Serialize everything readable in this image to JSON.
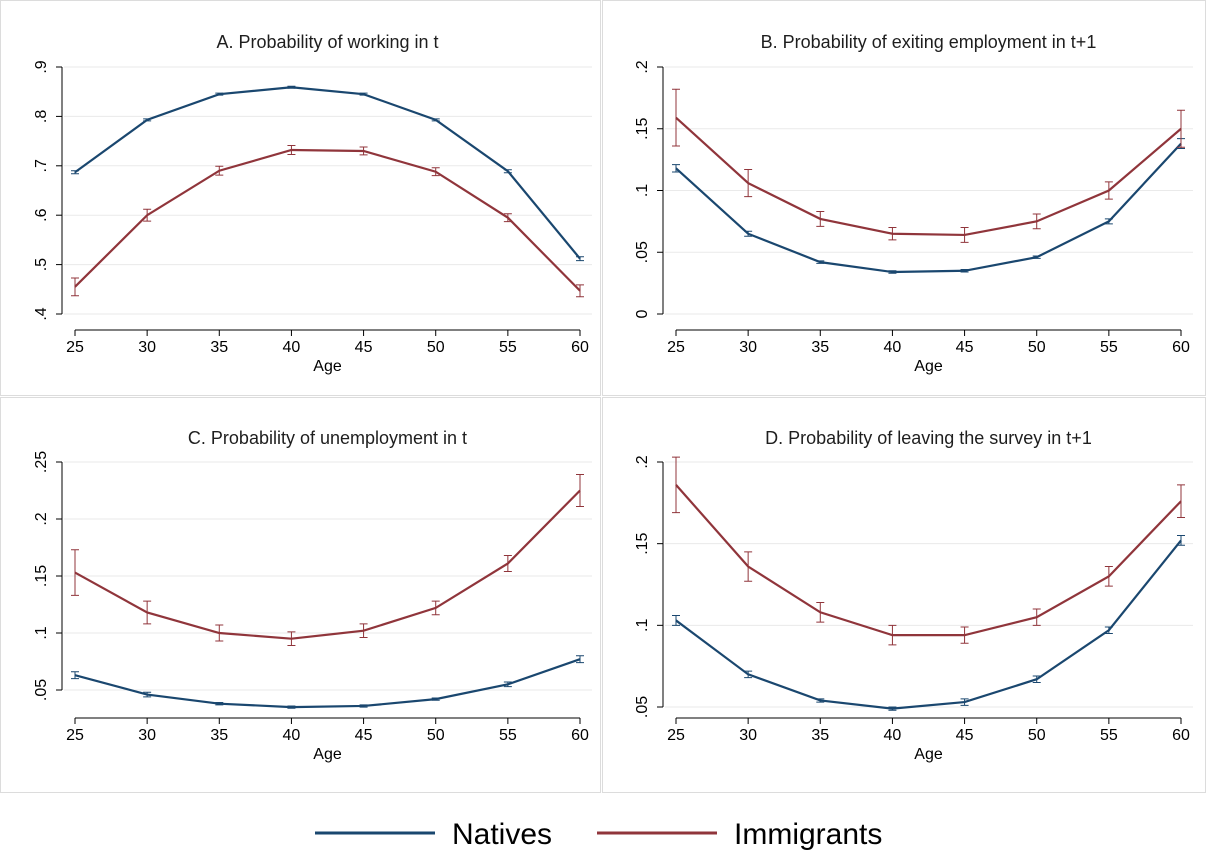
{
  "chart_data": [
    {
      "type": "line",
      "title": "A. Probability of working in t",
      "x_label": "Age",
      "x": [
        25,
        30,
        35,
        40,
        45,
        50,
        55,
        60
      ],
      "xlim": [
        25,
        60
      ],
      "xticks": [
        25,
        30,
        35,
        40,
        45,
        50,
        55,
        60
      ],
      "ylim": [
        0.4,
        0.9
      ],
      "yticks": [
        {
          "value": 0.4,
          "label": ".4"
        },
        {
          "value": 0.5,
          "label": ".5"
        },
        {
          "value": 0.6,
          "label": ".6"
        },
        {
          "value": 0.7,
          "label": ".7"
        },
        {
          "value": 0.8,
          "label": ".8"
        },
        {
          "value": 0.9,
          "label": ".9"
        }
      ],
      "grid": true,
      "series": [
        {
          "name": "Natives",
          "color": "#1a476f",
          "values": [
            0.687,
            0.793,
            0.845,
            0.859,
            0.845,
            0.793,
            0.689,
            0.512
          ],
          "errors": [
            0.003,
            0.002,
            0.002,
            0.002,
            0.002,
            0.002,
            0.003,
            0.004
          ]
        },
        {
          "name": "Immigrants",
          "color": "#90353b",
          "values": [
            0.455,
            0.6,
            0.69,
            0.732,
            0.73,
            0.688,
            0.595,
            0.447
          ],
          "errors": [
            0.018,
            0.012,
            0.009,
            0.009,
            0.008,
            0.008,
            0.008,
            0.012
          ]
        }
      ]
    },
    {
      "type": "line",
      "title": "B. Probability of exiting employment in t+1",
      "x_label": "Age",
      "x": [
        25,
        30,
        35,
        40,
        45,
        50,
        55,
        60
      ],
      "xlim": [
        25,
        60
      ],
      "xticks": [
        25,
        30,
        35,
        40,
        45,
        50,
        55,
        60
      ],
      "ylim": [
        0,
        0.2
      ],
      "yticks": [
        0,
        {
          "value": 0.05,
          "label": ".05"
        },
        {
          "value": 0.1,
          "label": ".1"
        },
        {
          "value": 0.15,
          "label": ".15"
        },
        {
          "value": 0.2,
          "label": ".2"
        }
      ],
      "grid": true,
      "series": [
        {
          "name": "Natives",
          "color": "#1a476f",
          "values": [
            0.118,
            0.065,
            0.042,
            0.034,
            0.035,
            0.046,
            0.075,
            0.138
          ],
          "errors": [
            0.003,
            0.002,
            0.001,
            0.001,
            0.001,
            0.001,
            0.002,
            0.004
          ]
        },
        {
          "name": "Immigrants",
          "color": "#90353b",
          "values": [
            0.159,
            0.106,
            0.077,
            0.065,
            0.064,
            0.075,
            0.1,
            0.15
          ],
          "errors": [
            0.023,
            0.011,
            0.006,
            0.005,
            0.006,
            0.006,
            0.007,
            0.015
          ]
        }
      ]
    },
    {
      "type": "line",
      "title": "C. Probability of unemployment in t",
      "x_label": "Age",
      "x": [
        25,
        30,
        35,
        40,
        45,
        50,
        55,
        60
      ],
      "xlim": [
        25,
        60
      ],
      "xticks": [
        25,
        30,
        35,
        40,
        45,
        50,
        55,
        60
      ],
      "ylim": [
        0.05,
        0.25
      ],
      "yticks": [
        {
          "value": 0.05,
          "label": ".05"
        },
        {
          "value": 0.1,
          "label": ".1"
        },
        {
          "value": 0.15,
          "label": ".15"
        },
        {
          "value": 0.2,
          "label": ".2"
        },
        {
          "value": 0.25,
          "label": ".25"
        }
      ],
      "grid": true,
      "series": [
        {
          "name": "Natives",
          "color": "#1a476f",
          "values": [
            0.063,
            0.046,
            0.038,
            0.035,
            0.036,
            0.042,
            0.055,
            0.077
          ],
          "errors": [
            0.003,
            0.002,
            0.001,
            0.001,
            0.001,
            0.001,
            0.002,
            0.003
          ]
        },
        {
          "name": "Immigrants",
          "color": "#90353b",
          "values": [
            0.153,
            0.118,
            0.1,
            0.095,
            0.102,
            0.122,
            0.161,
            0.225
          ],
          "errors": [
            0.02,
            0.01,
            0.007,
            0.006,
            0.006,
            0.006,
            0.007,
            0.014
          ]
        }
      ]
    },
    {
      "type": "line",
      "title": "D. Probability of leaving the survey in t+1",
      "x_label": "Age",
      "x": [
        25,
        30,
        35,
        40,
        45,
        50,
        55,
        60
      ],
      "xlim": [
        25,
        60
      ],
      "xticks": [
        25,
        30,
        35,
        40,
        45,
        50,
        55,
        60
      ],
      "ylim": [
        0.05,
        0.2
      ],
      "yticks": [
        {
          "value": 0.05,
          "label": ".05"
        },
        {
          "value": 0.1,
          "label": ".1"
        },
        {
          "value": 0.15,
          "label": ".15"
        },
        {
          "value": 0.2,
          "label": ".2"
        }
      ],
      "grid": true,
      "series": [
        {
          "name": "Natives",
          "color": "#1a476f",
          "values": [
            0.103,
            0.07,
            0.054,
            0.049,
            0.053,
            0.067,
            0.097,
            0.152
          ],
          "errors": [
            0.003,
            0.002,
            0.001,
            0.001,
            0.002,
            0.002,
            0.002,
            0.003
          ]
        },
        {
          "name": "Immigrants",
          "color": "#90353b",
          "values": [
            0.186,
            0.136,
            0.108,
            0.094,
            0.094,
            0.105,
            0.13,
            0.176
          ],
          "errors": [
            0.017,
            0.009,
            0.006,
            0.006,
            0.005,
            0.005,
            0.006,
            0.01
          ]
        }
      ]
    }
  ]
}
